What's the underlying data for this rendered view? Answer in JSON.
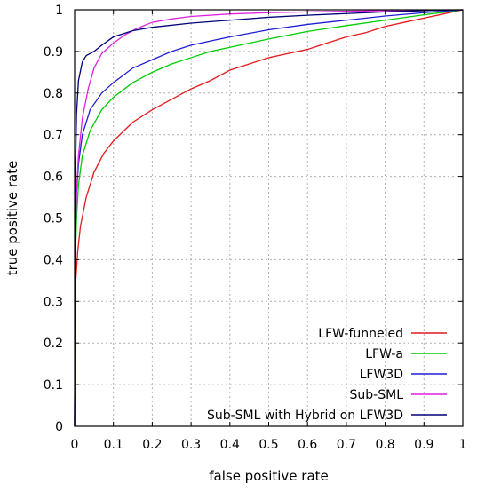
{
  "chart_data": {
    "type": "line",
    "title": "",
    "xlabel": "false positive rate",
    "ylabel": "true positive rate",
    "xlim": [
      0,
      1
    ],
    "ylim": [
      0,
      1
    ],
    "xticks": [
      "0",
      "0.1",
      "0.2",
      "0.3",
      "0.4",
      "0.5",
      "0.6",
      "0.7",
      "0.8",
      "0.9",
      "1"
    ],
    "yticks": [
      "0",
      "0.1",
      "0.2",
      "0.3",
      "0.4",
      "0.5",
      "0.6",
      "0.7",
      "0.8",
      "0.9",
      "1"
    ],
    "grid": true,
    "legend_position": "bottom-right",
    "series": [
      {
        "name": "LFW-funneled",
        "color": "#e41a1c",
        "points": [
          [
            0,
            0
          ],
          [
            0.003,
            0.35
          ],
          [
            0.008,
            0.42
          ],
          [
            0.015,
            0.48
          ],
          [
            0.03,
            0.55
          ],
          [
            0.05,
            0.61
          ],
          [
            0.075,
            0.655
          ],
          [
            0.1,
            0.685
          ],
          [
            0.15,
            0.73
          ],
          [
            0.2,
            0.76
          ],
          [
            0.25,
            0.785
          ],
          [
            0.3,
            0.81
          ],
          [
            0.35,
            0.83
          ],
          [
            0.4,
            0.855
          ],
          [
            0.45,
            0.87
          ],
          [
            0.5,
            0.885
          ],
          [
            0.55,
            0.895
          ],
          [
            0.6,
            0.905
          ],
          [
            0.65,
            0.92
          ],
          [
            0.7,
            0.935
          ],
          [
            0.75,
            0.945
          ],
          [
            0.8,
            0.96
          ],
          [
            0.85,
            0.97
          ],
          [
            0.9,
            0.98
          ],
          [
            0.95,
            0.99
          ],
          [
            1,
            1
          ]
        ]
      },
      {
        "name": "LFW-a",
        "color": "#00cc00",
        "points": [
          [
            0,
            0
          ],
          [
            0.002,
            0.4
          ],
          [
            0.005,
            0.5
          ],
          [
            0.01,
            0.58
          ],
          [
            0.02,
            0.65
          ],
          [
            0.04,
            0.71
          ],
          [
            0.07,
            0.76
          ],
          [
            0.1,
            0.79
          ],
          [
            0.15,
            0.825
          ],
          [
            0.2,
            0.85
          ],
          [
            0.25,
            0.87
          ],
          [
            0.3,
            0.885
          ],
          [
            0.35,
            0.9
          ],
          [
            0.4,
            0.91
          ],
          [
            0.5,
            0.93
          ],
          [
            0.6,
            0.948
          ],
          [
            0.7,
            0.962
          ],
          [
            0.8,
            0.975
          ],
          [
            0.9,
            0.988
          ],
          [
            1,
            1
          ]
        ]
      },
      {
        "name": "LFW3D",
        "color": "#1f1fd6",
        "points": [
          [
            0,
            0
          ],
          [
            0.002,
            0.45
          ],
          [
            0.005,
            0.56
          ],
          [
            0.01,
            0.63
          ],
          [
            0.02,
            0.7
          ],
          [
            0.04,
            0.76
          ],
          [
            0.07,
            0.8
          ],
          [
            0.1,
            0.825
          ],
          [
            0.15,
            0.86
          ],
          [
            0.2,
            0.88
          ],
          [
            0.25,
            0.9
          ],
          [
            0.3,
            0.915
          ],
          [
            0.35,
            0.925
          ],
          [
            0.4,
            0.935
          ],
          [
            0.5,
            0.952
          ],
          [
            0.6,
            0.965
          ],
          [
            0.7,
            0.975
          ],
          [
            0.8,
            0.985
          ],
          [
            0.9,
            0.993
          ],
          [
            1,
            1
          ]
        ]
      },
      {
        "name": "Sub-SML",
        "color": "#e020e0",
        "points": [
          [
            0,
            0
          ],
          [
            0.002,
            0.45
          ],
          [
            0.005,
            0.57
          ],
          [
            0.01,
            0.65
          ],
          [
            0.02,
            0.74
          ],
          [
            0.035,
            0.81
          ],
          [
            0.05,
            0.86
          ],
          [
            0.07,
            0.895
          ],
          [
            0.1,
            0.92
          ],
          [
            0.13,
            0.94
          ],
          [
            0.16,
            0.955
          ],
          [
            0.2,
            0.97
          ],
          [
            0.25,
            0.978
          ],
          [
            0.3,
            0.984
          ],
          [
            0.4,
            0.99
          ],
          [
            0.5,
            0.993
          ],
          [
            0.6,
            0.995
          ],
          [
            0.8,
            0.998
          ],
          [
            1,
            1
          ]
        ]
      },
      {
        "name": "Sub-SML with Hybrid on LFW3D",
        "color": "#00007a",
        "points": [
          [
            0,
            0
          ],
          [
            0.002,
            0.6
          ],
          [
            0.005,
            0.75
          ],
          [
            0.01,
            0.83
          ],
          [
            0.02,
            0.875
          ],
          [
            0.03,
            0.89
          ],
          [
            0.05,
            0.9
          ],
          [
            0.07,
            0.915
          ],
          [
            0.1,
            0.935
          ],
          [
            0.15,
            0.95
          ],
          [
            0.2,
            0.958
          ],
          [
            0.3,
            0.968
          ],
          [
            0.4,
            0.975
          ],
          [
            0.5,
            0.982
          ],
          [
            0.6,
            0.987
          ],
          [
            0.7,
            0.991
          ],
          [
            0.8,
            0.995
          ],
          [
            0.9,
            0.998
          ],
          [
            1,
            1
          ]
        ]
      }
    ]
  }
}
